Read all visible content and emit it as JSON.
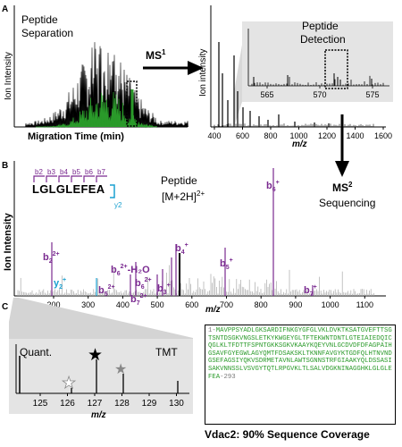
{
  "panels": {
    "a": {
      "label": "A"
    },
    "b": {
      "label": "B"
    },
    "c": {
      "label": "C"
    }
  },
  "panel_a": {
    "separation_title_1": "Peptide",
    "separation_title_2": "Separation",
    "separation_ylabel": "Ion Intensity",
    "separation_xlabel": "Migration Time (min)",
    "ms1_label": "MS",
    "ms1_sup": "1",
    "ms_ylabel": "Ion intensity",
    "ms_xlabel": "m/z",
    "ms_ticks": [
      "400",
      "600",
      "800",
      "1000",
      "1200",
      "1400",
      "1600"
    ],
    "detection_1": "Peptide",
    "detection_2": "Detection",
    "inset_ticks": [
      "565",
      "570",
      "575"
    ]
  },
  "panel_b": {
    "ms2_label": "MS",
    "ms2_sup": "2",
    "sequencing": "Sequencing",
    "ylabel": "Ion Intensity",
    "xlabel": "m/z",
    "xticks": [
      "200",
      "300",
      "400",
      "500",
      "600",
      "700",
      "800",
      "900",
      "1000",
      "1100"
    ],
    "peptide_sequence": "LGLGLEFEA",
    "precursor_1": "Peptide",
    "precursor_2": "[M+2H]",
    "precursor_sup": "2+",
    "b_ladder": [
      "b2",
      "b3",
      "b4",
      "b5",
      "b6",
      "b7"
    ],
    "y_ladder": "y2",
    "ion_labels": [
      {
        "base": "b",
        "sub": "6",
        "sup": "+"
      },
      {
        "base": "b",
        "sub": "4",
        "sup": "+"
      },
      {
        "base": "b",
        "sub": "2",
        "sup": "2+"
      },
      {
        "base": "b",
        "sub": "5",
        "sup": "+"
      },
      {
        "base": "b",
        "sub": "6",
        "sup": "2+",
        "tail": "-H₂O"
      },
      {
        "base": "y",
        "sub": "2",
        "sup": "+"
      },
      {
        "base": "b",
        "sub": "5",
        "sup": "2+"
      },
      {
        "base": "b",
        "sub": "6",
        "sup": "2+"
      },
      {
        "base": "b",
        "sub": "3",
        "sup": "+"
      },
      {
        "base": "b",
        "sub": "7",
        "sup": "2+"
      },
      {
        "base": "b",
        "sub": "7",
        "sup": "+"
      }
    ]
  },
  "panel_c": {
    "quant": "Quant.",
    "tmt": "TMT",
    "xlabel": "m/z",
    "xticks": [
      "125",
      "126",
      "127",
      "128",
      "129",
      "130"
    ]
  },
  "sequence": {
    "prefix": "1-",
    "text": "MAVPPSYADLGKSARDIFNKGYGFGLVKLDVKTKSATGVEFTTSGTSNTDSGKVNGSLETKYKWGEYGLTFTEKWNTDNTLGTEIAIEDQICQGLKLTFDTTFSPNTGKKSGKVKAAYKQEYVNLGCDVDFDFAGPAIHGSAVFGYEGWLAGYQMTFDSAKSKLTKNNFAVGYKTGDFQLHTNVNDGSEFAGSIYQKVSDRMETAVNLAWTSGNNSTRFGIAAKYQLDSSASISAKVNNSSLVSVGYTQTLRPGVKLTLSALVDGKNINAGGHKLGLGLEFEA",
    "suffix": "-293",
    "coverage_caption": "Vdac2: 90% Sequence Coverage"
  },
  "colors": {
    "green": "#2a9a2a",
    "purple": "#7a2a90",
    "cyan": "#1aa0d0",
    "gray": "#aaaaaa"
  }
}
